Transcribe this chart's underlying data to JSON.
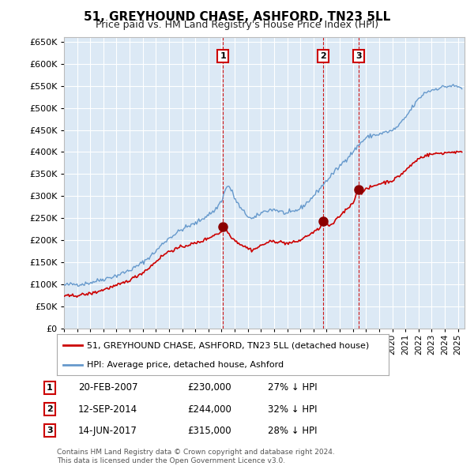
{
  "title": "51, GREYHOUND CHASE, ASHFORD, TN23 5LL",
  "subtitle": "Price paid vs. HM Land Registry's House Price Index (HPI)",
  "ylabel_ticks": [
    0,
    50000,
    100000,
    150000,
    200000,
    250000,
    300000,
    350000,
    400000,
    450000,
    500000,
    550000,
    600000,
    650000
  ],
  "ylim": [
    0,
    660000
  ],
  "xlim_start": 1995.0,
  "xlim_end": 2025.5,
  "background_color": "#ffffff",
  "chart_bg_color": "#dce9f5",
  "grid_color": "#ffffff",
  "transaction_dates_year": [
    2007.12,
    2014.71,
    2017.45
  ],
  "transaction_labels": [
    "1",
    "2",
    "3"
  ],
  "transaction_prices": [
    230000,
    244000,
    315000
  ],
  "transaction_info": [
    {
      "label": "1",
      "date": "20-FEB-2007",
      "price": "£230,000",
      "hpi": "27% ↓ HPI"
    },
    {
      "label": "2",
      "date": "12-SEP-2014",
      "price": "£244,000",
      "hpi": "32% ↓ HPI"
    },
    {
      "label": "3",
      "date": "14-JUN-2017",
      "price": "£315,000",
      "hpi": "28% ↓ HPI"
    }
  ],
  "legend_red_label": "51, GREYHOUND CHASE, ASHFORD, TN23 5LL (detached house)",
  "legend_blue_label": "HPI: Average price, detached house, Ashford",
  "footer_line1": "Contains HM Land Registry data © Crown copyright and database right 2024.",
  "footer_line2": "This data is licensed under the Open Government Licence v3.0.",
  "red_color": "#cc0000",
  "blue_color": "#6699cc",
  "vline_color": "#cc0000",
  "marker_box_color": "#cc0000",
  "hpi_anchors": [
    [
      1995.0,
      98000
    ],
    [
      1995.5,
      100000
    ],
    [
      1996.0,
      100500
    ],
    [
      1996.5,
      101000
    ],
    [
      1997.0,
      104000
    ],
    [
      1997.5,
      108000
    ],
    [
      1998.0,
      112000
    ],
    [
      1998.5,
      116000
    ],
    [
      1999.0,
      120000
    ],
    [
      1999.5,
      126000
    ],
    [
      2000.0,
      132000
    ],
    [
      2000.5,
      140000
    ],
    [
      2001.0,
      150000
    ],
    [
      2001.5,
      162000
    ],
    [
      2002.0,
      175000
    ],
    [
      2002.5,
      192000
    ],
    [
      2003.0,
      205000
    ],
    [
      2003.5,
      215000
    ],
    [
      2004.0,
      225000
    ],
    [
      2004.5,
      232000
    ],
    [
      2005.0,
      238000
    ],
    [
      2005.5,
      248000
    ],
    [
      2006.0,
      258000
    ],
    [
      2006.5,
      268000
    ],
    [
      2007.0,
      290000
    ],
    [
      2007.3,
      315000
    ],
    [
      2007.5,
      325000
    ],
    [
      2007.8,
      310000
    ],
    [
      2008.0,
      295000
    ],
    [
      2008.5,
      270000
    ],
    [
      2009.0,
      255000
    ],
    [
      2009.3,
      248000
    ],
    [
      2009.6,
      252000
    ],
    [
      2010.0,
      262000
    ],
    [
      2010.5,
      268000
    ],
    [
      2011.0,
      270000
    ],
    [
      2011.5,
      265000
    ],
    [
      2012.0,
      260000
    ],
    [
      2012.5,
      265000
    ],
    [
      2013.0,
      272000
    ],
    [
      2013.5,
      285000
    ],
    [
      2014.0,
      300000
    ],
    [
      2014.5,
      318000
    ],
    [
      2015.0,
      335000
    ],
    [
      2015.5,
      352000
    ],
    [
      2016.0,
      368000
    ],
    [
      2016.5,
      385000
    ],
    [
      2017.0,
      400000
    ],
    [
      2017.5,
      418000
    ],
    [
      2018.0,
      432000
    ],
    [
      2018.5,
      438000
    ],
    [
      2019.0,
      440000
    ],
    [
      2019.5,
      445000
    ],
    [
      2020.0,
      448000
    ],
    [
      2020.5,
      460000
    ],
    [
      2021.0,
      478000
    ],
    [
      2021.5,
      500000
    ],
    [
      2022.0,
      520000
    ],
    [
      2022.5,
      535000
    ],
    [
      2023.0,
      540000
    ],
    [
      2023.5,
      545000
    ],
    [
      2024.0,
      548000
    ],
    [
      2024.5,
      550000
    ],
    [
      2025.0,
      548000
    ],
    [
      2025.3,
      545000
    ]
  ],
  "red_anchors": [
    [
      1995.0,
      73000
    ],
    [
      1995.5,
      74000
    ],
    [
      1996.0,
      75000
    ],
    [
      1996.5,
      77000
    ],
    [
      1997.0,
      79000
    ],
    [
      1997.5,
      83000
    ],
    [
      1998.0,
      88000
    ],
    [
      1998.5,
      93000
    ],
    [
      1999.0,
      97000
    ],
    [
      1999.5,
      103000
    ],
    [
      2000.0,
      110000
    ],
    [
      2000.5,
      118000
    ],
    [
      2001.0,
      127000
    ],
    [
      2001.5,
      138000
    ],
    [
      2002.0,
      152000
    ],
    [
      2002.5,
      165000
    ],
    [
      2003.0,
      175000
    ],
    [
      2003.5,
      180000
    ],
    [
      2004.0,
      185000
    ],
    [
      2004.5,
      190000
    ],
    [
      2005.0,
      193000
    ],
    [
      2005.5,
      198000
    ],
    [
      2006.0,
      205000
    ],
    [
      2006.5,
      213000
    ],
    [
      2007.0,
      218000
    ],
    [
      2007.12,
      230000
    ],
    [
      2007.3,
      225000
    ],
    [
      2007.6,
      213000
    ],
    [
      2008.0,
      200000
    ],
    [
      2008.5,
      190000
    ],
    [
      2009.0,
      182000
    ],
    [
      2009.3,
      178000
    ],
    [
      2009.6,
      181000
    ],
    [
      2010.0,
      188000
    ],
    [
      2010.5,
      195000
    ],
    [
      2011.0,
      198000
    ],
    [
      2011.5,
      196000
    ],
    [
      2012.0,
      193000
    ],
    [
      2012.5,
      195000
    ],
    [
      2013.0,
      200000
    ],
    [
      2013.5,
      210000
    ],
    [
      2014.0,
      218000
    ],
    [
      2014.4,
      225000
    ],
    [
      2014.71,
      244000
    ],
    [
      2014.9,
      238000
    ],
    [
      2015.2,
      232000
    ],
    [
      2015.5,
      238000
    ],
    [
      2016.0,
      255000
    ],
    [
      2016.5,
      270000
    ],
    [
      2017.0,
      285000
    ],
    [
      2017.45,
      315000
    ],
    [
      2017.7,
      308000
    ],
    [
      2018.0,
      315000
    ],
    [
      2018.5,
      322000
    ],
    [
      2019.0,
      328000
    ],
    [
      2019.5,
      332000
    ],
    [
      2020.0,
      335000
    ],
    [
      2020.5,
      345000
    ],
    [
      2021.0,
      358000
    ],
    [
      2021.5,
      372000
    ],
    [
      2022.0,
      385000
    ],
    [
      2022.5,
      392000
    ],
    [
      2023.0,
      395000
    ],
    [
      2023.5,
      397000
    ],
    [
      2024.0,
      398000
    ],
    [
      2024.5,
      400000
    ],
    [
      2025.0,
      400000
    ],
    [
      2025.3,
      398000
    ]
  ]
}
